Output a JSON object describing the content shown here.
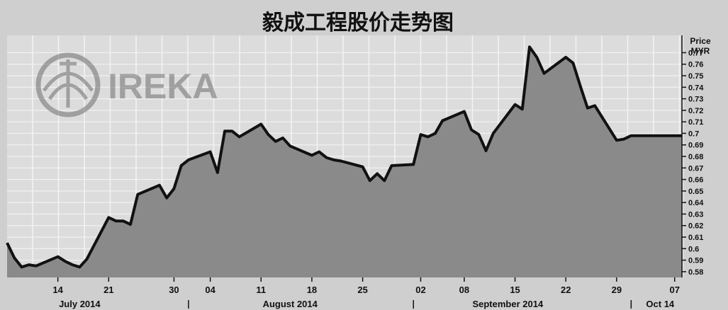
{
  "chart_data": {
    "type": "area",
    "title": "毅成工程股价走势图",
    "logo_text": "IREKA",
    "ylabel": "Price MYR",
    "ylabel_lines": [
      "Price",
      "MYR"
    ],
    "ylim": [
      0.575,
      0.785
    ],
    "y_ticks": [
      0.77,
      0.76,
      0.75,
      0.74,
      0.73,
      0.72,
      0.71,
      0.7,
      0.69,
      0.68,
      0.67,
      0.66,
      0.65,
      0.64,
      0.63,
      0.62,
      0.61,
      0.6,
      0.59,
      0.58
    ],
    "y_tick_labels": [
      "0.77",
      "0.76",
      "0.75",
      "0.74",
      "0.73",
      "0.72",
      "0.71",
      "0.7",
      "0.69",
      "0.68",
      "0.67",
      "0.66",
      "0.65",
      "0.64",
      "0.63",
      "0.62",
      "0.61",
      "0.6",
      "0.59",
      "0.58"
    ],
    "x_tick_labels": [
      "14",
      "21",
      "30",
      "04",
      "11",
      "18",
      "25",
      "02",
      "08",
      "15",
      "22",
      "29",
      "07"
    ],
    "month_labels": [
      "July 2014",
      "August 2014",
      "September 2014",
      "Oct 14"
    ],
    "x": [
      "2014-07-07",
      "2014-07-08",
      "2014-07-09",
      "2014-07-10",
      "2014-07-11",
      "2014-07-14",
      "2014-07-15",
      "2014-07-16",
      "2014-07-17",
      "2014-07-18",
      "2014-07-21",
      "2014-07-22",
      "2014-07-23",
      "2014-07-24",
      "2014-07-25",
      "2014-07-28",
      "2014-07-29",
      "2014-07-30",
      "2014-07-31",
      "2014-08-01",
      "2014-08-04",
      "2014-08-05",
      "2014-08-06",
      "2014-08-07",
      "2014-08-08",
      "2014-08-11",
      "2014-08-12",
      "2014-08-13",
      "2014-08-14",
      "2014-08-15",
      "2014-08-18",
      "2014-08-19",
      "2014-08-20",
      "2014-08-21",
      "2014-08-22",
      "2014-08-25",
      "2014-08-26",
      "2014-08-27",
      "2014-08-28",
      "2014-08-29",
      "2014-09-01",
      "2014-09-02",
      "2014-09-03",
      "2014-09-04",
      "2014-09-05",
      "2014-09-08",
      "2014-09-09",
      "2014-09-10",
      "2014-09-11",
      "2014-09-12",
      "2014-09-15",
      "2014-09-16",
      "2014-09-17",
      "2014-09-18",
      "2014-09-19",
      "2014-09-22",
      "2014-09-23",
      "2014-09-24",
      "2014-09-25",
      "2014-09-26",
      "2014-09-29",
      "2014-09-30",
      "2014-10-01",
      "2014-10-02",
      "2014-10-03",
      "2014-10-06",
      "2014-10-07",
      "2014-10-08"
    ],
    "values": [
      0.605,
      0.592,
      0.584,
      0.586,
      0.585,
      0.593,
      0.589,
      0.586,
      0.584,
      0.591,
      0.627,
      0.624,
      0.624,
      0.621,
      0.647,
      0.655,
      0.644,
      0.652,
      0.672,
      0.677,
      0.684,
      0.666,
      0.702,
      0.702,
      0.697,
      0.708,
      0.699,
      0.693,
      0.696,
      0.689,
      0.681,
      0.684,
      0.679,
      0.677,
      0.676,
      0.671,
      0.659,
      0.665,
      0.659,
      0.672,
      0.673,
      0.699,
      0.697,
      0.7,
      0.711,
      0.719,
      0.703,
      0.699,
      0.685,
      0.7,
      0.725,
      0.721,
      0.775,
      0.766,
      0.752,
      0.766,
      0.761,
      0.741,
      0.722,
      0.724,
      0.694,
      0.695,
      0.698,
      0.698,
      0.698,
      0.698,
      0.698,
      0.698
    ],
    "grid": true,
    "colors": {
      "background": "#cfcfcf",
      "plot_background": "#dcdcdc",
      "area_fill": "#8a8a8a",
      "line": "#111111",
      "grid": "#f2f2f2",
      "logo": "#777777"
    }
  }
}
